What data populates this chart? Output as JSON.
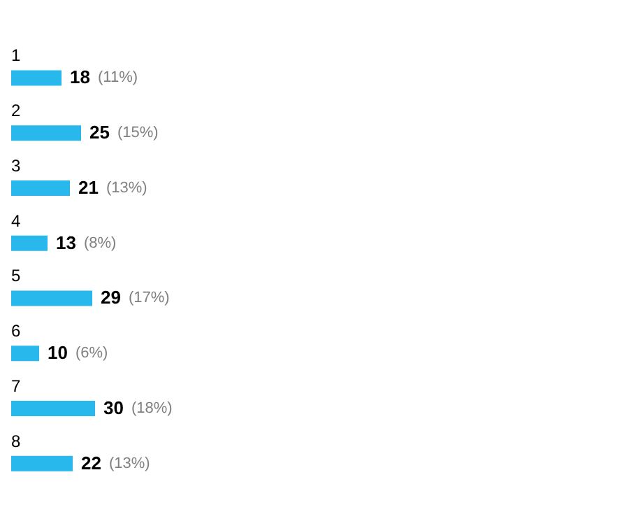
{
  "chart_data": {
    "type": "bar",
    "orientation": "horizontal",
    "categories": [
      "1",
      "2",
      "3",
      "4",
      "5",
      "6",
      "7",
      "8"
    ],
    "values": [
      18,
      25,
      21,
      13,
      29,
      10,
      30,
      22
    ],
    "color": "#29b8ec",
    "data_labels": true,
    "annotations": [
      {
        "text": "(11%)",
        "x": 18,
        "y": "1"
      },
      {
        "text": "(15%)",
        "x": 25,
        "y": "2"
      },
      {
        "text": "(13%)",
        "x": 21,
        "y": "3"
      },
      {
        "text": "(8%)",
        "x": 13,
        "y": "4"
      },
      {
        "text": "(17%)",
        "x": 29,
        "y": "5"
      },
      {
        "text": "(6%)",
        "x": 10,
        "y": "6"
      },
      {
        "text": "(18%)",
        "x": 30,
        "y": "7"
      },
      {
        "text": "(13%)",
        "x": 22,
        "y": "8"
      }
    ]
  }
}
